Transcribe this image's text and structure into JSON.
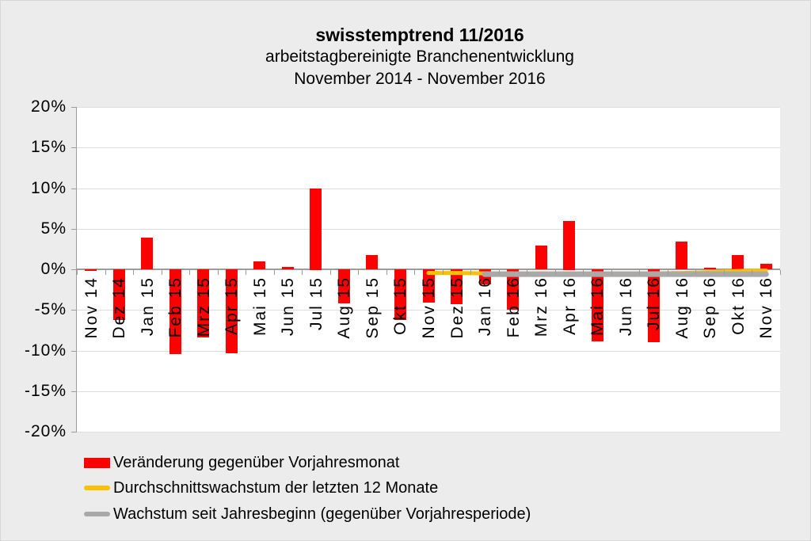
{
  "title": {
    "line1": "swisstemptrend 11/2016",
    "line2": "arbeitstagbereinigte Branchenentwicklung",
    "line3": "November 2014 - November 2016"
  },
  "y_axis": {
    "labels": [
      "20%",
      "15%",
      "10%",
      "5%",
      "0%",
      "-5%",
      "-10%",
      "-15%",
      "-20%"
    ],
    "values": [
      20,
      15,
      10,
      5,
      0,
      -5,
      -10,
      -15,
      -20
    ]
  },
  "chart_data": {
    "type": "bar",
    "title": "swisstemptrend 11/2016",
    "subtitle": "arbeitstagbereinigte Branchenentwicklung November 2014 - November 2016",
    "unit": "%",
    "ylim": [
      -20,
      20
    ],
    "y_tick_step": 5,
    "grid": true,
    "legend_position": "bottom-left",
    "categories": [
      "Nov 14",
      "Dez 14",
      "Jan 15",
      "Feb 15",
      "Mrz 15",
      "Apr 15",
      "Mai 15",
      "Jun 15",
      "Jul 15",
      "Aug 15",
      "Sep 15",
      "Okt 15",
      "Nov 15",
      "Dez 15",
      "Jan 16",
      "Feb 16",
      "Mrz 16",
      "Apr 16",
      "Mai 16",
      "Jun 16",
      "Jul 16",
      "Aug 16",
      "Sep 16",
      "Okt 16",
      "Nov 16"
    ],
    "series": [
      {
        "name": "Veränderung gegenüber Vorjahresmonat",
        "type": "bar",
        "color": "#FF0000",
        "values": [
          -0.2,
          -6.2,
          3.9,
          -10.4,
          -8.4,
          -10.3,
          1.0,
          0.3,
          10.0,
          -4.2,
          1.8,
          -6.2,
          -4.1,
          -4.3,
          -1.9,
          -5.0,
          2.9,
          6.0,
          -8.9,
          0.0,
          -9.0,
          3.4,
          0.2,
          1.8,
          0.7
        ]
      },
      {
        "name": "Durchschnittswachstum der letzten 12 Monate",
        "type": "line",
        "color": "#FFC000",
        "values": [
          null,
          null,
          null,
          null,
          null,
          null,
          null,
          null,
          null,
          null,
          null,
          null,
          -0.45,
          -0.45,
          -0.5,
          -0.5,
          -0.5,
          -0.5,
          -0.5,
          -0.5,
          -0.5,
          -0.45,
          -0.35,
          -0.2,
          -0.15
        ]
      },
      {
        "name": "Wachstum seit Jahresbeginn (gegenüber Vorjahresperiode)",
        "type": "line",
        "color": "#A9A9A9",
        "values": [
          null,
          null,
          null,
          null,
          null,
          null,
          null,
          null,
          null,
          null,
          null,
          null,
          null,
          null,
          -0.6,
          -0.6,
          -0.6,
          -0.6,
          -0.6,
          -0.6,
          -0.6,
          -0.6,
          -0.6,
          -0.6,
          -0.6
        ]
      }
    ]
  },
  "legend": {
    "items": [
      {
        "label": "Veränderung gegenüber Vorjahresmonat",
        "marker": "rect",
        "color": "#FF0000"
      },
      {
        "label": "Durchschnittswachstum der letzten 12 Monate",
        "marker": "line",
        "color": "#FFC000"
      },
      {
        "label": "Wachstum seit Jahresbeginn (gegenüber Vorjahresperiode)",
        "marker": "line",
        "color": "#A9A9A9"
      }
    ]
  }
}
